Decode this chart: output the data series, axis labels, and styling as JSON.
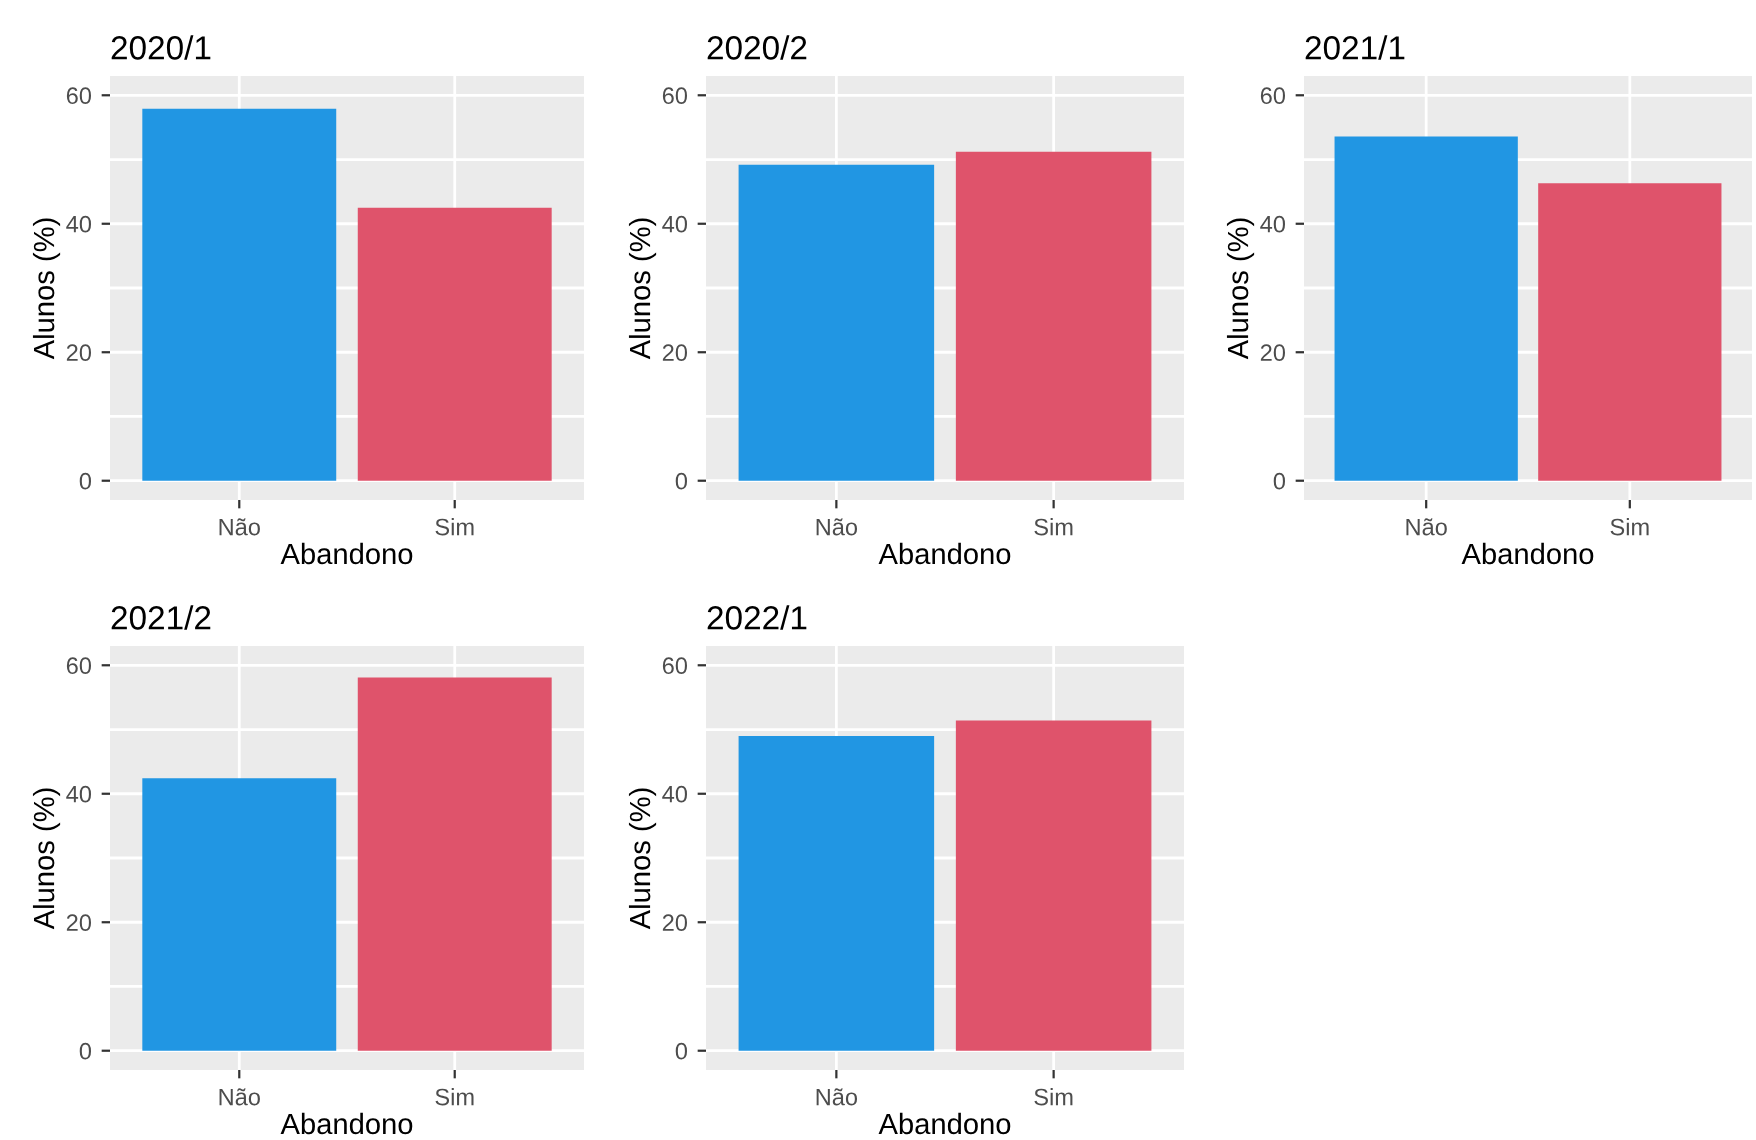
{
  "chart_data": [
    {
      "type": "bar",
      "title": "2020/1",
      "xlabel": "Abandono",
      "ylabel": "Alunos (%)",
      "categories": [
        "Não",
        "Sim"
      ],
      "values": [
        57.9,
        42.5
      ],
      "colors": [
        "#2196e3",
        "#df536b"
      ],
      "ylim": [
        -3,
        63
      ],
      "yticks": [
        0,
        20,
        40,
        60
      ],
      "grid": true
    },
    {
      "type": "bar",
      "title": "2020/2",
      "xlabel": "Abandono",
      "ylabel": "Alunos (%)",
      "categories": [
        "Não",
        "Sim"
      ],
      "values": [
        49.2,
        51.2
      ],
      "colors": [
        "#2196e3",
        "#df536b"
      ],
      "ylim": [
        -3,
        63
      ],
      "yticks": [
        0,
        20,
        40,
        60
      ],
      "grid": true
    },
    {
      "type": "bar",
      "title": "2021/1",
      "xlabel": "Abandono",
      "ylabel": "Alunos (%)",
      "categories": [
        "Não",
        "Sim"
      ],
      "values": [
        53.6,
        46.3
      ],
      "colors": [
        "#2196e3",
        "#df536b"
      ],
      "ylim": [
        -3,
        63
      ],
      "yticks": [
        0,
        20,
        40,
        60
      ],
      "grid": true
    },
    {
      "type": "bar",
      "title": "2021/2",
      "xlabel": "Abandono",
      "ylabel": "Alunos (%)",
      "categories": [
        "Não",
        "Sim"
      ],
      "values": [
        42.4,
        58.1
      ],
      "colors": [
        "#2196e3",
        "#df536b"
      ],
      "ylim": [
        -3,
        63
      ],
      "yticks": [
        0,
        20,
        40,
        60
      ],
      "grid": true
    },
    {
      "type": "bar",
      "title": "2022/1",
      "xlabel": "Abandono",
      "ylabel": "Alunos (%)",
      "categories": [
        "Não",
        "Sim"
      ],
      "values": [
        49.0,
        51.4
      ],
      "colors": [
        "#2196e3",
        "#df536b"
      ],
      "ylim": [
        -3,
        63
      ],
      "yticks": [
        0,
        20,
        40,
        60
      ],
      "grid": true
    }
  ]
}
